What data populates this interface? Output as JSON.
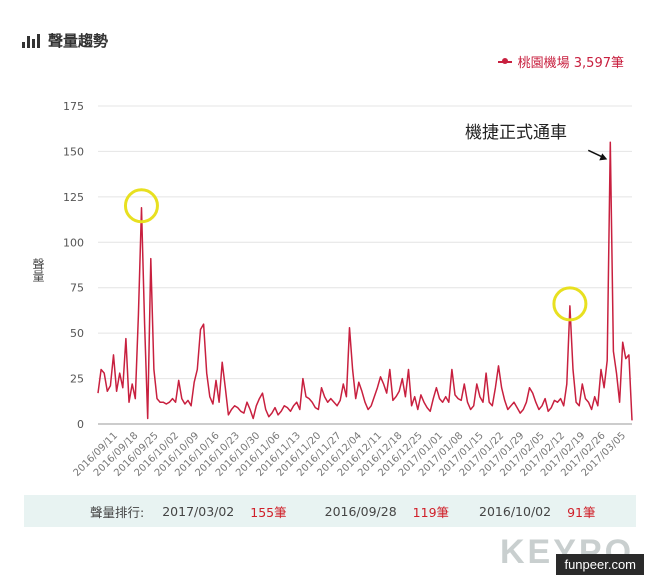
{
  "header": {
    "title": "聲量趨勢"
  },
  "legend": {
    "label": "桃園機場 3,597筆"
  },
  "annotation": {
    "text": "機捷正式通車"
  },
  "ranking": {
    "label": "聲量排行:",
    "items": [
      {
        "date": "2017/03/02",
        "count": "155筆"
      },
      {
        "date": "2016/09/28",
        "count": "119筆"
      },
      {
        "date": "2016/10/02",
        "count": "91筆"
      }
    ]
  },
  "brand": {
    "text": "KEYPO"
  },
  "watermark": {
    "text": "funpeer.com"
  },
  "colors": {
    "series": "#c8203f",
    "highlight": "#e8e020",
    "ranking_bg": "#e8f3f2"
  },
  "chart_data": {
    "type": "line",
    "ylabel": "聲量",
    "ylim": [
      0,
      175
    ],
    "yticks": [
      0,
      25,
      50,
      75,
      100,
      125,
      150,
      175
    ],
    "grid": true,
    "xticks": [
      "2016/09/11",
      "2016/09/18",
      "2016/09/25",
      "2016/10/02",
      "2016/10/09",
      "2016/10/16",
      "2016/10/23",
      "2016/10/30",
      "2016/11/06",
      "2016/11/13",
      "2016/11/20",
      "2016/11/27",
      "2016/12/04",
      "2016/12/11",
      "2016/12/18",
      "2016/12/25",
      "2017/01/01",
      "2017/01/08",
      "2017/01/15",
      "2017/01/22",
      "2017/01/29",
      "2017/02/05",
      "2017/02/12",
      "2017/02/19",
      "2017/02/26",
      "2017/03/05"
    ],
    "series": [
      {
        "name": "桃園機場",
        "values": [
          17,
          30,
          28,
          18,
          21,
          38,
          18,
          28,
          20,
          47,
          12,
          22,
          14,
          60,
          119,
          55,
          3,
          91,
          30,
          14,
          12,
          12,
          11,
          12,
          14,
          12,
          24,
          14,
          11,
          13,
          10,
          23,
          30,
          52,
          55,
          28,
          15,
          11,
          24,
          12,
          34,
          20,
          5,
          8,
          10,
          9,
          7,
          6,
          12,
          8,
          3,
          10,
          14,
          17,
          8,
          4,
          6,
          9,
          5,
          7,
          10,
          9,
          7,
          10,
          12,
          8,
          25,
          15,
          14,
          12,
          9,
          8,
          20,
          15,
          12,
          14,
          12,
          10,
          13,
          22,
          15,
          53,
          30,
          14,
          23,
          18,
          12,
          8,
          10,
          15,
          20,
          26,
          22,
          17,
          30,
          13,
          15,
          18,
          25,
          15,
          30,
          10,
          15,
          8,
          16,
          12,
          9,
          7,
          14,
          20,
          14,
          12,
          15,
          12,
          30,
          16,
          14,
          13,
          22,
          12,
          8,
          10,
          22,
          15,
          12,
          28,
          12,
          10,
          20,
          32,
          20,
          13,
          8,
          10,
          12,
          9,
          6,
          8,
          12,
          20,
          17,
          12,
          8,
          10,
          14,
          7,
          9,
          13,
          12,
          14,
          10,
          22,
          65,
          30,
          12,
          10,
          22,
          14,
          12,
          8,
          15,
          10,
          30,
          20,
          35,
          155,
          40,
          28,
          12,
          45,
          36,
          38,
          2
        ]
      }
    ]
  }
}
